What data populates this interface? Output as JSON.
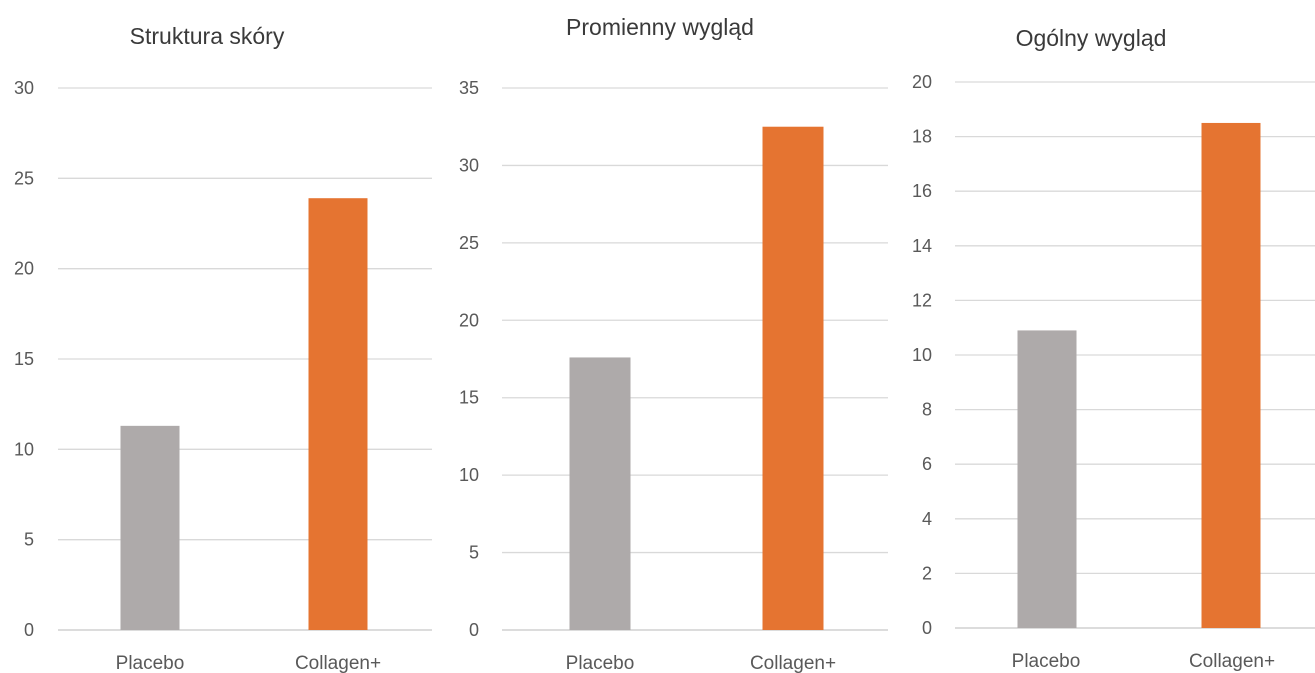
{
  "chart_data": [
    {
      "type": "bar",
      "title": "Struktura skóry",
      "categories": [
        "Placebo",
        "Collagen+"
      ],
      "values": [
        11.3,
        23.9
      ],
      "ylim": [
        0,
        30
      ],
      "yticks": [
        0,
        5,
        10,
        15,
        20,
        25,
        30
      ],
      "colors": [
        "#aeaaaa",
        "#e57431"
      ],
      "grid": true,
      "legend": "none"
    },
    {
      "type": "bar",
      "title": "Promienny wygląd",
      "categories": [
        "Placebo",
        "Collagen+"
      ],
      "values": [
        17.6,
        32.5
      ],
      "ylim": [
        0,
        35
      ],
      "yticks": [
        0,
        5,
        10,
        15,
        20,
        25,
        30,
        35
      ],
      "colors": [
        "#aeaaaa",
        "#e57431"
      ],
      "grid": true,
      "legend": "none"
    },
    {
      "type": "bar",
      "title": "Ogólny wygląd",
      "categories": [
        "Placebo",
        "Collagen+"
      ],
      "values": [
        10.9,
        18.5
      ],
      "ylim": [
        0,
        20
      ],
      "yticks": [
        0,
        2,
        4,
        6,
        8,
        10,
        12,
        14,
        16,
        18,
        20
      ],
      "colors": [
        "#aeaaaa",
        "#e57431"
      ],
      "grid": true,
      "legend": "none"
    }
  ]
}
